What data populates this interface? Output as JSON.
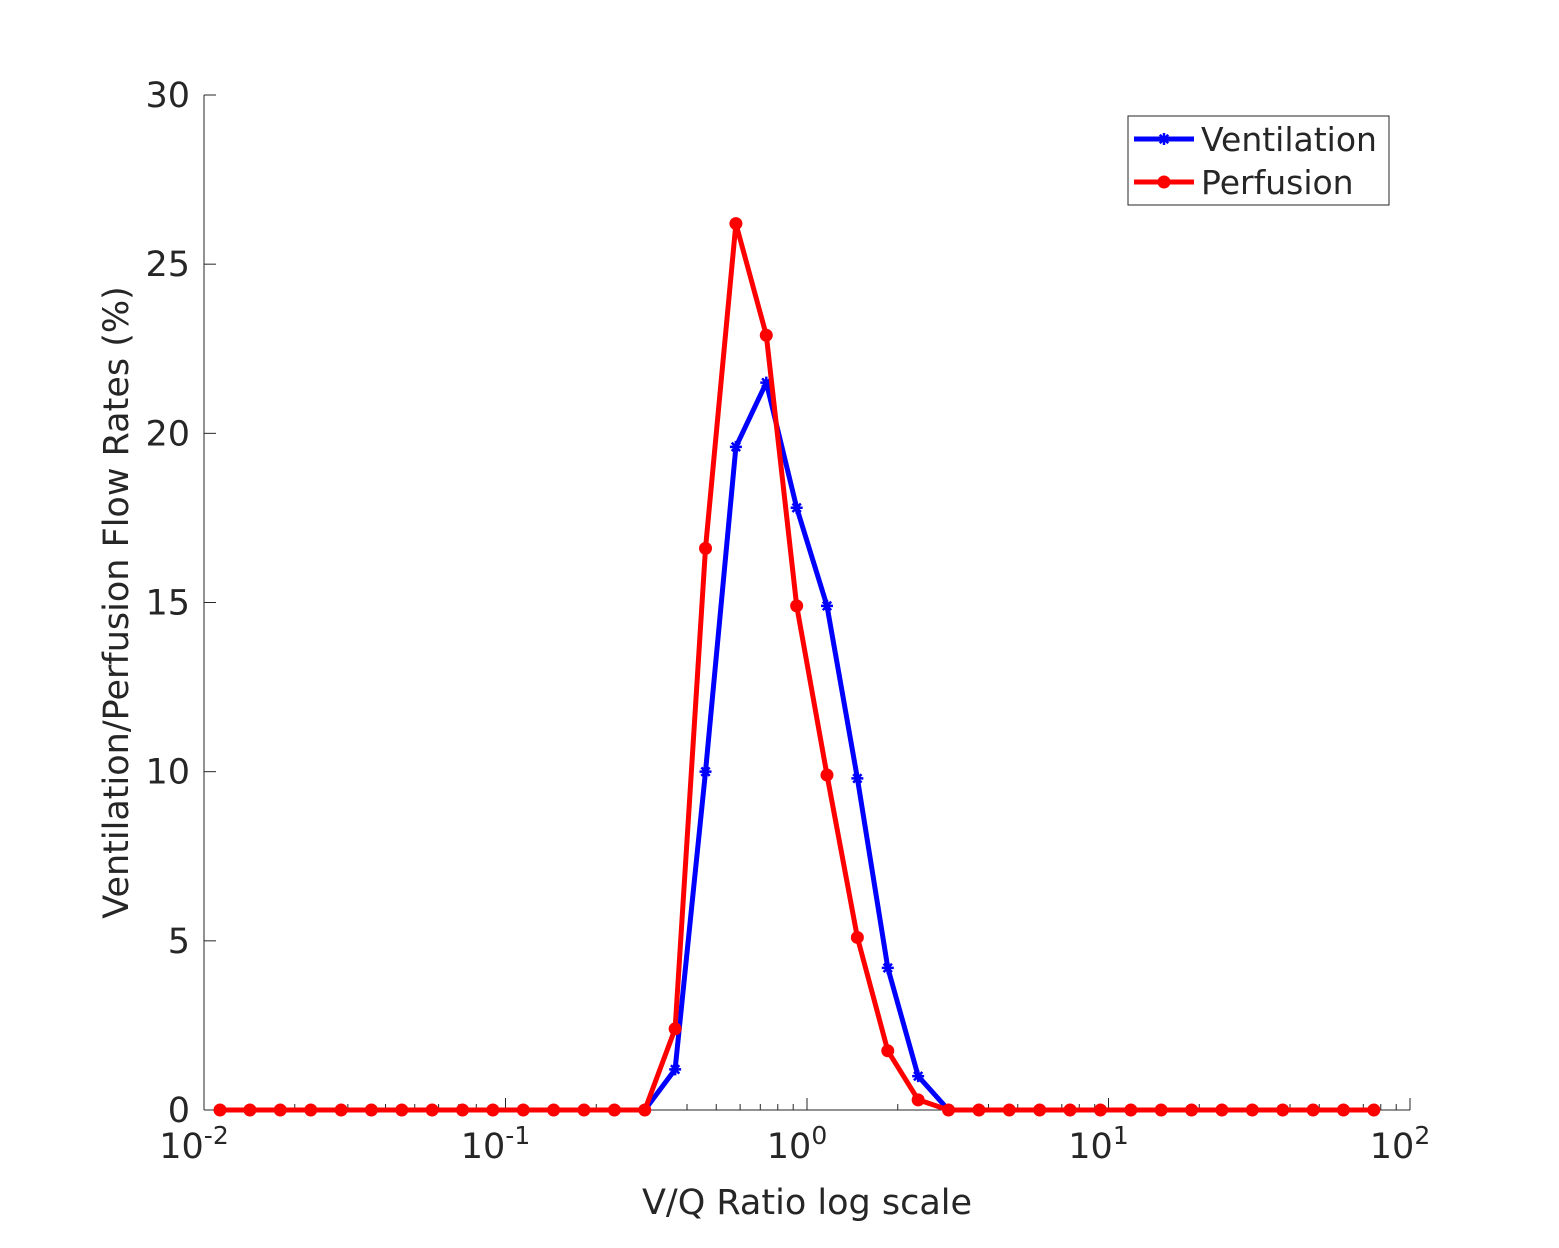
{
  "chart_data": {
    "type": "line",
    "xlabel": "V/Q Ratio log scale",
    "ylabel": "Ventilation/Perfusion Flow Rates (%)",
    "x_scale": "log",
    "xlim": [
      0.01,
      100
    ],
    "ylim": [
      0,
      30
    ],
    "x_ticks": [
      {
        "base": "10",
        "exp": "-2"
      },
      {
        "base": "10",
        "exp": "-1"
      },
      {
        "base": "10",
        "exp": "0"
      },
      {
        "base": "10",
        "exp": "1"
      },
      {
        "base": "10",
        "exp": "2"
      }
    ],
    "y_ticks": [
      "0",
      "5",
      "10",
      "15",
      "20",
      "25",
      "30"
    ],
    "y_tick_values": [
      0,
      5,
      10,
      15,
      20,
      25,
      30
    ],
    "grid": false,
    "legend_position": "top-right",
    "x": [
      0.0113,
      0.0142,
      0.0179,
      0.0226,
      0.0285,
      0.0359,
      0.0453,
      0.0571,
      0.072,
      0.0908,
      0.1145,
      0.1444,
      0.1821,
      0.2297,
      0.2897,
      0.3653,
      0.4607,
      0.581,
      0.7327,
      0.9241,
      1.165,
      1.469,
      1.853,
      2.337,
      2.947,
      3.717,
      4.687,
      5.911,
      7.455,
      9.402,
      11.86,
      14.95,
      18.86,
      23.78,
      29.99,
      37.82,
      47.7,
      60.15,
      75.86
    ],
    "series": [
      {
        "name": "Ventilation",
        "color": "#0000ff",
        "marker": "star",
        "values": [
          0,
          0,
          0,
          0,
          0,
          0,
          0,
          0,
          0,
          0,
          0,
          0,
          0,
          0,
          0,
          1.2,
          10.0,
          19.6,
          21.5,
          17.8,
          14.9,
          9.8,
          4.2,
          1.0,
          0,
          0,
          0,
          0,
          0,
          0,
          0,
          0,
          0,
          0,
          0,
          0,
          0,
          0,
          0
        ]
      },
      {
        "name": "Perfusion",
        "color": "#ff0000",
        "marker": "dot",
        "values": [
          0,
          0,
          0,
          0,
          0,
          0,
          0,
          0,
          0,
          0,
          0,
          0,
          0,
          0,
          0,
          2.4,
          16.6,
          26.2,
          22.9,
          14.9,
          9.9,
          5.1,
          1.75,
          0.3,
          0,
          0,
          0,
          0,
          0,
          0,
          0,
          0,
          0,
          0,
          0,
          0,
          0,
          0,
          0
        ]
      }
    ]
  }
}
